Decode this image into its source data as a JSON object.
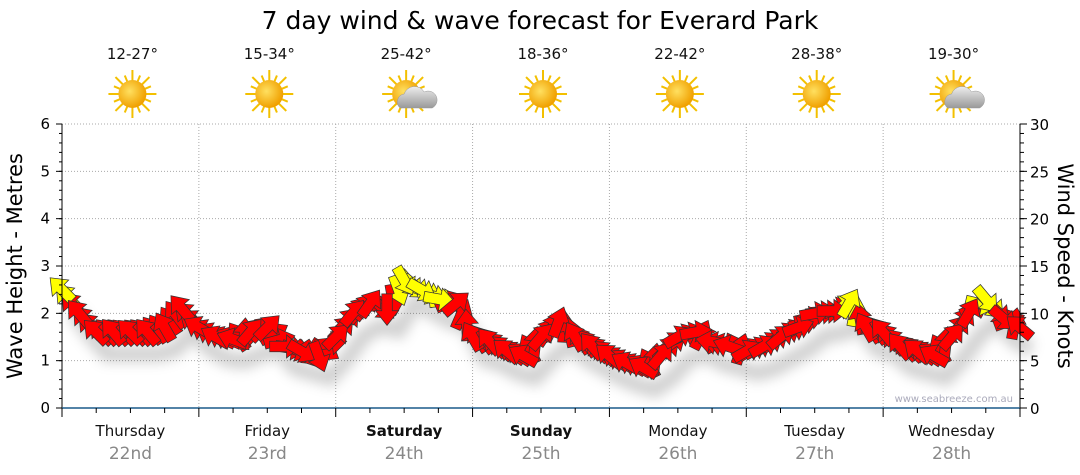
{
  "chart_data": {
    "type": "line",
    "title": "7 day wind & wave forecast for Everard Park",
    "ylabel": "Wave Height - Metres",
    "y2label": "Wind Speed - Knots",
    "ylim": [
      0,
      6
    ],
    "y2lim": [
      0,
      30
    ],
    "yticks": [
      "0",
      "1",
      "2",
      "3",
      "4",
      "5",
      "6"
    ],
    "y2ticks": [
      "0",
      "5",
      "10",
      "15",
      "20",
      "25",
      "30"
    ],
    "grid": true,
    "watermark": "www.seabreeze.com.au",
    "days": [
      {
        "day": "Thursday",
        "date": "22nd",
        "bold": false,
        "temp": "12-27°",
        "weather": "sunny"
      },
      {
        "day": "Friday",
        "date": "23rd",
        "bold": false,
        "temp": "15-34°",
        "weather": "sunny"
      },
      {
        "day": "Saturday",
        "date": "24th",
        "bold": true,
        "temp": "25-42°",
        "weather": "partly-cloudy"
      },
      {
        "day": "Sunday",
        "date": "25th",
        "bold": true,
        "temp": "18-36°",
        "weather": "sunny"
      },
      {
        "day": "Monday",
        "date": "26th",
        "bold": false,
        "temp": "22-42°",
        "weather": "sunny"
      },
      {
        "day": "Tuesday",
        "date": "27th",
        "bold": false,
        "temp": "28-38°",
        "weather": "sunny"
      },
      {
        "day": "Wednesday",
        "date": "28th",
        "bold": false,
        "temp": "19-30°",
        "weather": "partly-cloudy"
      }
    ],
    "x_unit": "hours from Thursday 00:00, 3-hourly",
    "wave_height": [
      2.5,
      2.0,
      1.6,
      1.6,
      1.6,
      1.6,
      1.7,
      2.1,
      1.7,
      1.5,
      1.45,
      1.6,
      1.7,
      1.3,
      1.2,
      1.1,
      1.5,
      2.0,
      2.2,
      2.1,
      2.7,
      2.5,
      2.3,
      2.2,
      1.5,
      1.4,
      1.2,
      1.1,
      1.5,
      1.8,
      1.5,
      1.3,
      1.1,
      0.95,
      0.85,
      1.1,
      1.5,
      1.6,
      1.4,
      1.3,
      1.2,
      1.3,
      1.5,
      1.7,
      2.0,
      2.05,
      2.2,
      1.7,
      1.6,
      1.3,
      1.2,
      1.1,
      1.5,
      2.0,
      2.3,
      1.9,
      1.7
    ],
    "wind_arrow_direction_deg": [
      315,
      320,
      315,
      320,
      315,
      320,
      330,
      320,
      300,
      300,
      290,
      40,
      45,
      90,
      120,
      160,
      45,
      40,
      35,
      180,
      150,
      120,
      100,
      50,
      330,
      320,
      310,
      300,
      40,
      20,
      330,
      320,
      310,
      300,
      300,
      40,
      60,
      80,
      280,
      290,
      60,
      60,
      50,
      70,
      80,
      90,
      30,
      330,
      320,
      320,
      310,
      300,
      40,
      30,
      140,
      130,
      310
    ],
    "wind_arrow_color": [
      "yellow",
      "red",
      "red",
      "red",
      "red",
      "red",
      "red",
      "red",
      "red",
      "red",
      "red",
      "red",
      "red",
      "red",
      "red",
      "red",
      "red",
      "red",
      "red",
      "red",
      "yellow",
      "yellow",
      "yellow",
      "red",
      "red",
      "red",
      "red",
      "red",
      "red",
      "red",
      "red",
      "red",
      "red",
      "red",
      "red",
      "red",
      "red",
      "red",
      "red",
      "red",
      "red",
      "red",
      "red",
      "red",
      "red",
      "red",
      "yellow",
      "red",
      "red",
      "red",
      "red",
      "red",
      "red",
      "red",
      "yellow",
      "red",
      "red"
    ],
    "colors": {
      "red": "#ff0000",
      "yellow": "#ffff00",
      "axis": "#1a5a8a"
    }
  }
}
